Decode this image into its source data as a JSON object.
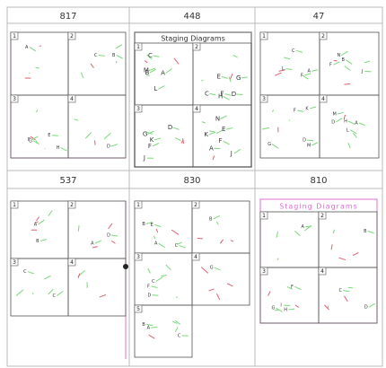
{
  "cells": [
    {
      "id": "817",
      "panels": [
        {
          "label": "1",
          "letters": [
            "A"
          ]
        },
        {
          "label": "2",
          "letters": [
            "B",
            "C"
          ]
        },
        {
          "label": "3",
          "letters": [
            "F",
            "G",
            "H",
            "E"
          ]
        },
        {
          "label": "4",
          "letters": [
            "D"
          ]
        }
      ]
    },
    {
      "id": "448",
      "title": "Staging Diagrams",
      "panels": [
        {
          "label": "1",
          "letters": [
            "M",
            "L",
            "C",
            "B",
            "A"
          ]
        },
        {
          "label": "2",
          "letters": [
            "G",
            "C",
            "F",
            "H",
            "E",
            "D"
          ]
        },
        {
          "label": "3",
          "letters": [
            "F",
            "K",
            "J",
            "G",
            "D"
          ]
        },
        {
          "label": "4",
          "letters": [
            "F",
            "K",
            "N",
            "J",
            "E",
            "A"
          ]
        }
      ]
    },
    {
      "id": "47",
      "panels": [
        {
          "label": "1",
          "letters": [
            "F",
            "C",
            "A",
            "L"
          ]
        },
        {
          "label": "2",
          "letters": [
            "N",
            "B",
            "J",
            "F"
          ]
        },
        {
          "label": "3",
          "letters": [
            "M",
            "G",
            "D",
            "K",
            "F"
          ]
        },
        {
          "label": "4",
          "letters": [
            "M",
            "D",
            "H",
            "L",
            "A"
          ]
        }
      ]
    },
    {
      "id": "537",
      "panels": [
        {
          "label": "1",
          "letters": [
            "A",
            "B"
          ]
        },
        {
          "label": "2",
          "letters": [
            "A",
            "D"
          ]
        },
        {
          "label": "3",
          "letters": [
            "C",
            "C"
          ]
        },
        {
          "label": "4",
          "letters": []
        }
      ]
    },
    {
      "id": "830",
      "panels": [
        {
          "label": "1",
          "letters": [
            "A",
            "B",
            "C",
            "E"
          ]
        },
        {
          "label": "2",
          "letters": [
            "B"
          ]
        },
        {
          "label": "3",
          "letters": [
            "D",
            "C",
            "F"
          ]
        },
        {
          "label": "4",
          "letters": [
            "G"
          ]
        },
        {
          "label": "5",
          "letters": [
            "B",
            "A",
            "C"
          ]
        }
      ]
    },
    {
      "id": "810",
      "title": "Staging Diagrams",
      "panels": [
        {
          "label": "1",
          "letters": [
            "A"
          ]
        },
        {
          "label": "2",
          "letters": [
            "B"
          ]
        },
        {
          "label": "3",
          "letters": [
            "F",
            "I",
            "G",
            "H"
          ]
        },
        {
          "label": "4",
          "letters": [
            "D",
            "C"
          ]
        }
      ]
    }
  ]
}
